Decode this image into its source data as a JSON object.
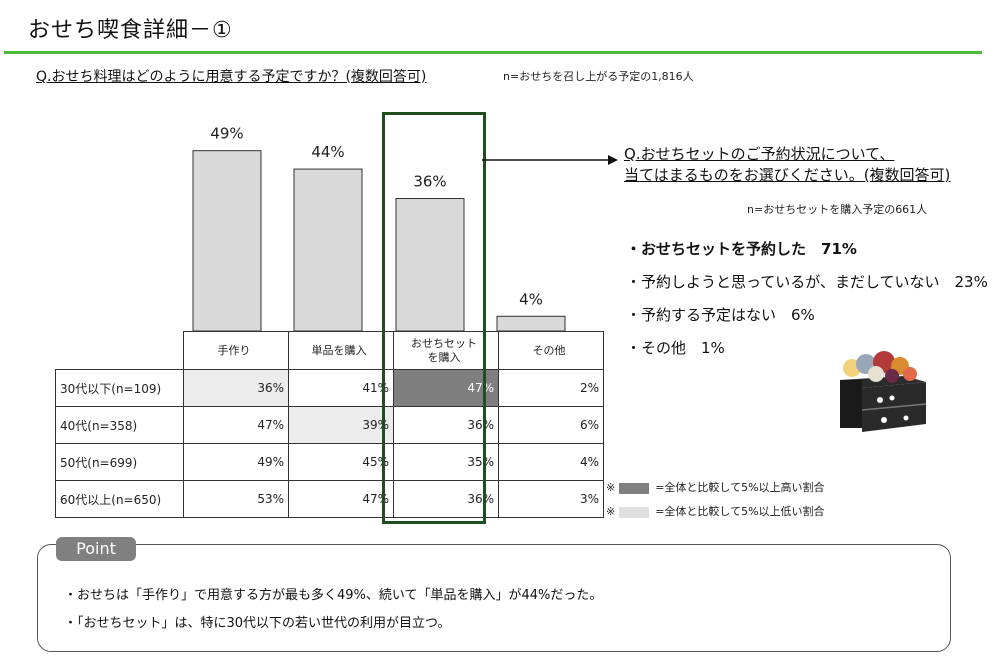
{
  "page_title": "おせち喫食詳細－①",
  "question": "Q.おせち料理はどのように用意する予定ですか？(複数回答可)",
  "question_note": "n=おせちを召し上がる予定の1,816人",
  "chart_data": {
    "type": "bar",
    "categories": [
      "手作り",
      "単品を購入",
      "おせちセットを購入",
      "その他"
    ],
    "values": [
      49,
      44,
      36,
      4
    ],
    "value_labels": [
      "49%",
      "44%",
      "36%",
      "4%"
    ],
    "ylim": [
      0,
      100
    ],
    "bar_color": "#d9d9d9",
    "title": "Q.おせち料理はどのように用意する予定ですか？(複数回答可)"
  },
  "table": {
    "headers": [
      "手作り",
      "単品を購入",
      "おせちセット\nを購入",
      "その他"
    ],
    "rows": [
      {
        "label": "30代以下(n=109)",
        "cells": [
          "36%",
          "41%",
          "47%",
          "2%"
        ],
        "marks": [
          "lo",
          "",
          "hi",
          ""
        ]
      },
      {
        "label": "40代(n=358)",
        "cells": [
          "47%",
          "39%",
          "36%",
          "6%"
        ],
        "marks": [
          "",
          "lo",
          "",
          ""
        ]
      },
      {
        "label": "50代(n=699)",
        "cells": [
          "49%",
          "45%",
          "35%",
          "4%"
        ],
        "marks": [
          "",
          "",
          "",
          ""
        ]
      },
      {
        "label": "60代以上(n=650)",
        "cells": [
          "53%",
          "47%",
          "36%",
          "3%"
        ],
        "marks": [
          "",
          "",
          "",
          ""
        ]
      }
    ]
  },
  "colors": {
    "accent_rule": "#4cbb3a",
    "highlight_box": "#1f4e1f",
    "high_cell": "#7f7f7f",
    "low_cell": "#ececec"
  },
  "sub_question": {
    "line1": "Q.おせちセットのご予約状況について、",
    "line2": "当てはまるものをお選びください。(複数回答可)",
    "note": "n=おせちセットを購入予定の661人",
    "results": [
      "・おせちセットを予約した　71%",
      "・予約しようと思っているが、まだしていない　23%",
      "・予約する予定はない　6%",
      "・その他　1%"
    ]
  },
  "legend": {
    "mark": "※",
    "high": "=全体と比較して5%以上高い割合",
    "low": "=全体と比較して5%以上低い割合"
  },
  "point": {
    "tab": "Point",
    "line1": "・おせちは「手作り」で用意する方が最も多く49%、続いて「単品を購入」が44%だった。",
    "line2": "・「おせちセット」は、特に30代以下の若い世代の利用が目立つ。"
  },
  "illustration": "osechi-box-icon"
}
